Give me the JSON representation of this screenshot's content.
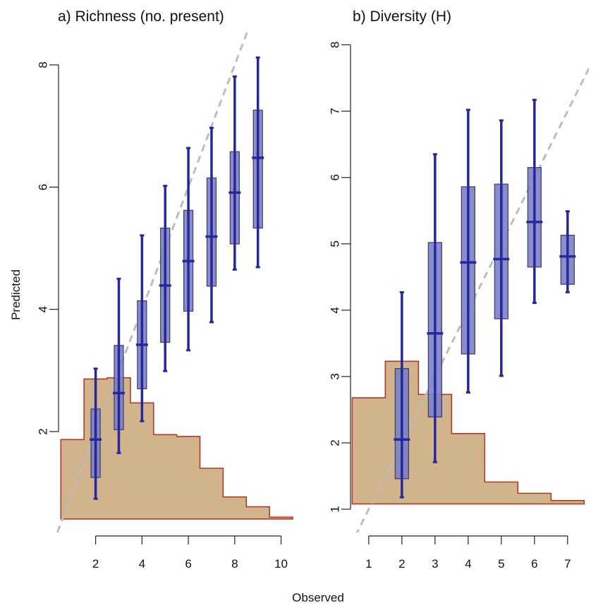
{
  "xlabel": "Observed",
  "ylabel": "Predicted",
  "colors": {
    "box_fill": "#7c80c8",
    "box_stroke": "#3a3a66",
    "whisker": "#26289a",
    "hist_fill": "#d2b48c",
    "hist_stroke": "#b03a25",
    "diagonal": "#bdbdbd"
  },
  "chart_data": [
    {
      "type": "box",
      "title": "a) Richness (no. present)",
      "xlabel": "Observed",
      "ylabel": "Predicted",
      "xlim": [
        0.4,
        10.5
      ],
      "ylim": [
        0.35,
        8.6
      ],
      "x_ticks": [
        2,
        4,
        6,
        8,
        10
      ],
      "y_ticks": [
        2,
        4,
        6,
        8
      ],
      "reference_line": "y = x",
      "boxes": [
        {
          "x": 2,
          "whisker_low": 0.9,
          "q1": 1.25,
          "median": 1.87,
          "q3": 2.37,
          "whisker_high": 3.03
        },
        {
          "x": 3,
          "whisker_low": 1.65,
          "q1": 2.03,
          "median": 2.63,
          "q3": 3.41,
          "whisker_high": 4.5
        },
        {
          "x": 4,
          "whisker_low": 2.17,
          "q1": 2.7,
          "median": 3.42,
          "q3": 4.14,
          "whisker_high": 5.21
        },
        {
          "x": 5,
          "whisker_low": 2.99,
          "q1": 3.46,
          "median": 4.39,
          "q3": 5.33,
          "whisker_high": 6.02
        },
        {
          "x": 6,
          "whisker_low": 3.33,
          "q1": 3.97,
          "median": 4.79,
          "q3": 5.62,
          "whisker_high": 6.64
        },
        {
          "x": 7,
          "whisker_low": 3.79,
          "q1": 4.38,
          "median": 5.19,
          "q3": 6.15,
          "whisker_high": 6.97
        },
        {
          "x": 8,
          "whisker_low": 4.65,
          "q1": 5.07,
          "median": 5.91,
          "q3": 6.58,
          "whisker_high": 7.81
        },
        {
          "x": 9,
          "whisker_low": 4.69,
          "q1": 5.33,
          "median": 6.48,
          "q3": 7.26,
          "whisker_high": 8.12
        }
      ],
      "histogram_of_observed": [
        {
          "from": 0.5,
          "to": 1.5,
          "level": 1.87
        },
        {
          "from": 1.5,
          "to": 2.5,
          "level": 2.86
        },
        {
          "from": 2.5,
          "to": 3.5,
          "level": 2.88
        },
        {
          "from": 3.5,
          "to": 4.5,
          "level": 2.47
        },
        {
          "from": 4.5,
          "to": 5.5,
          "level": 1.95
        },
        {
          "from": 5.5,
          "to": 6.5,
          "level": 1.92
        },
        {
          "from": 6.5,
          "to": 7.5,
          "level": 1.4
        },
        {
          "from": 7.5,
          "to": 8.5,
          "level": 0.93
        },
        {
          "from": 8.5,
          "to": 9.5,
          "level": 0.77
        },
        {
          "from": 9.5,
          "to": 10.5,
          "level": 0.6
        }
      ],
      "histogram_baseline": 0.57
    },
    {
      "type": "box",
      "title": "b) Diversity (H)",
      "xlabel": "Observed",
      "ylabel": "Predicted",
      "xlim": [
        0.45,
        7.6
      ],
      "ylim": [
        0.65,
        8.25
      ],
      "x_ticks": [
        1,
        2,
        3,
        4,
        5,
        6,
        7
      ],
      "y_ticks": [
        1,
        2,
        3,
        4,
        5,
        6,
        7,
        8
      ],
      "reference_line": "y = x",
      "boxes": [
        {
          "x": 2,
          "whisker_low": 1.18,
          "q1": 1.46,
          "median": 2.05,
          "q3": 3.12,
          "whisker_high": 4.27
        },
        {
          "x": 3,
          "whisker_low": 1.71,
          "q1": 2.39,
          "median": 3.65,
          "q3": 5.02,
          "whisker_high": 6.35
        },
        {
          "x": 4,
          "whisker_low": 2.76,
          "q1": 3.34,
          "median": 4.72,
          "q3": 5.86,
          "whisker_high": 7.02
        },
        {
          "x": 5,
          "whisker_low": 3.01,
          "q1": 3.87,
          "median": 4.77,
          "q3": 5.9,
          "whisker_high": 6.86
        },
        {
          "x": 6,
          "whisker_low": 4.11,
          "q1": 4.65,
          "median": 5.33,
          "q3": 6.15,
          "whisker_high": 7.17
        },
        {
          "x": 7,
          "whisker_low": 4.27,
          "q1": 4.39,
          "median": 4.81,
          "q3": 5.13,
          "whisker_high": 5.49
        }
      ],
      "histogram_of_observed": [
        {
          "from": 0.5,
          "to": 1.5,
          "level": 2.68
        },
        {
          "from": 1.5,
          "to": 2.5,
          "level": 3.23
        },
        {
          "from": 2.5,
          "to": 3.5,
          "level": 2.73
        },
        {
          "from": 3.5,
          "to": 4.5,
          "level": 2.14
        },
        {
          "from": 4.5,
          "to": 5.5,
          "level": 1.41
        },
        {
          "from": 5.5,
          "to": 6.5,
          "level": 1.24
        },
        {
          "from": 6.5,
          "to": 7.5,
          "level": 1.13
        }
      ],
      "histogram_baseline": 1.08
    }
  ]
}
